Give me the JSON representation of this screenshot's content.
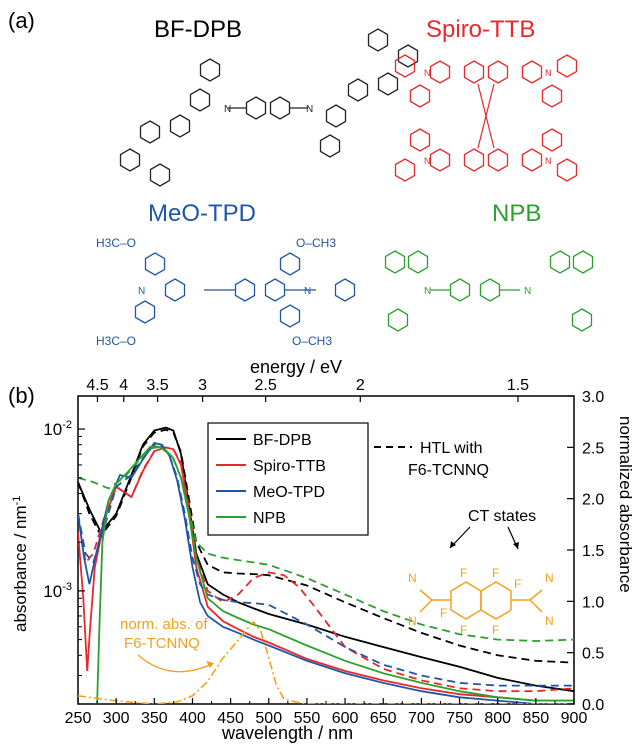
{
  "panel_a": {
    "label": "(a)",
    "molecules": [
      {
        "name": "BF-DPB",
        "color": "#000000"
      },
      {
        "name": "Spiro-TTB",
        "color": "#e8282b"
      },
      {
        "name": "MeO-TPD",
        "color": "#1f57a6"
      },
      {
        "name": "NPB",
        "color": "#2ca02c"
      }
    ],
    "meo_tpd_substituents": [
      "H3C–O",
      "O–CH3",
      "H3C–O",
      "O–CH3"
    ],
    "f6_atoms": {
      "N": "N",
      "F": "F"
    }
  },
  "panel_b": {
    "label": "(b)"
  },
  "chart_data": {
    "type": "line",
    "xlabel": "wavelength / nm",
    "ylabel_left": "absorbance / nm",
    "ylabel_left_exp": "-1",
    "ylabel_right": "normalized absorbance",
    "top_label": "energy / eV",
    "xlim": [
      250,
      900
    ],
    "ylim_left_log": [
      0.0002,
      0.016
    ],
    "ylim_right": [
      0,
      3.0
    ],
    "x_ticks": [
      "250",
      "300",
      "350",
      "400",
      "450",
      "500",
      "550",
      "600",
      "650",
      "700",
      "750",
      "800",
      "850",
      "900"
    ],
    "left_ticks": [
      {
        "value": 0.01,
        "base": "10",
        "exp": "-2"
      },
      {
        "value": 0.001,
        "base": "10",
        "exp": "-3"
      }
    ],
    "right_ticks": [
      "0.0",
      "0.5",
      "1.0",
      "1.5",
      "2.0",
      "2.5",
      "3.0"
    ],
    "top_ticks": [
      "4.5",
      "4",
      "3.5",
      "3",
      "2.5",
      "2",
      "1.5"
    ],
    "legend": {
      "entries": [
        "BF-DPB",
        "Spiro-TTB",
        "MeO-TPD",
        "NPB"
      ],
      "dashed_label_1": "HTL with",
      "dashed_label_2": "F6-TCNNQ"
    },
    "annotations": {
      "ct_states": "CT states",
      "norm_abs_1": "norm. abs. of",
      "norm_abs_2": "F6-TCNNQ"
    },
    "series": [
      {
        "name": "BF-DPB",
        "color": "#000000",
        "style": "solid",
        "x": [
          250,
          265,
          280,
          300,
          320,
          335,
          350,
          365,
          375,
          385,
          395,
          405,
          420,
          440,
          460,
          480,
          500,
          550,
          600,
          650,
          700,
          750,
          800,
          850,
          900
        ],
        "y": [
          0.0047,
          0.0032,
          0.0023,
          0.003,
          0.0052,
          0.008,
          0.0098,
          0.0102,
          0.0098,
          0.007,
          0.0035,
          0.0017,
          0.0011,
          0.00095,
          0.00085,
          0.00078,
          0.00072,
          0.00062,
          0.00052,
          0.00045,
          0.00039,
          0.00034,
          0.00029,
          0.00026,
          0.00024
        ]
      },
      {
        "name": "BF-DPB (HTL with F6-TCNNQ)",
        "color": "#000000",
        "style": "dashed",
        "x": [
          250,
          265,
          280,
          300,
          320,
          335,
          350,
          365,
          375,
          385,
          395,
          405,
          420,
          440,
          460,
          480,
          500,
          550,
          600,
          650,
          700,
          750,
          800,
          850,
          900
        ],
        "y": [
          0.0047,
          0.003,
          0.0022,
          0.0029,
          0.005,
          0.0078,
          0.0095,
          0.0099,
          0.0095,
          0.0072,
          0.0038,
          0.002,
          0.00145,
          0.0013,
          0.00128,
          0.00127,
          0.00125,
          0.00108,
          0.00085,
          0.00068,
          0.00055,
          0.00046,
          0.0004,
          0.00037,
          0.00036
        ]
      },
      {
        "name": "Spiro-TTB",
        "color": "#e8282b",
        "style": "solid",
        "x": [
          250,
          257,
          262,
          266,
          272,
          285,
          300,
          320,
          335,
          350,
          365,
          375,
          385,
          395,
          405,
          420,
          440,
          460,
          480,
          500,
          550,
          600,
          650,
          700,
          750,
          800,
          850,
          900
        ],
        "y": [
          0.0023,
          0.0009,
          0.00032,
          0.0006,
          0.0014,
          0.0028,
          0.0044,
          0.0038,
          0.0055,
          0.0073,
          0.0077,
          0.0075,
          0.006,
          0.0032,
          0.0014,
          0.0008,
          0.00065,
          0.00058,
          0.00052,
          0.00048,
          0.00038,
          0.00032,
          0.00028,
          0.00025,
          0.00023,
          0.00022,
          0.00021,
          0.00021
        ]
      },
      {
        "name": "Spiro-TTB (HTL with F6-TCNNQ)",
        "color": "#e8282b",
        "style": "dashed",
        "x": [
          250,
          260,
          270,
          285,
          300,
          320,
          335,
          350,
          365,
          375,
          385,
          395,
          405,
          420,
          440,
          460,
          480,
          500,
          520,
          540,
          560,
          600,
          650,
          700,
          750,
          800,
          850,
          900
        ],
        "y": [
          0.003,
          0.0015,
          0.0017,
          0.0029,
          0.0044,
          0.0038,
          0.0056,
          0.0073,
          0.0077,
          0.0075,
          0.0062,
          0.0034,
          0.0016,
          0.001,
          0.00085,
          0.00095,
          0.0012,
          0.0013,
          0.00125,
          0.00105,
          0.0008,
          0.00045,
          0.00033,
          0.00028,
          0.00025,
          0.00024,
          0.00024,
          0.00025
        ]
      },
      {
        "name": "MeO-TPD",
        "color": "#1f57a6",
        "style": "solid",
        "x": [
          250,
          258,
          265,
          275,
          290,
          305,
          320,
          335,
          350,
          360,
          370,
          380,
          390,
          400,
          410,
          420,
          440,
          460,
          480,
          500,
          550,
          600,
          650,
          700,
          750,
          800,
          850,
          900
        ],
        "y": [
          0.003,
          0.0016,
          0.0011,
          0.0018,
          0.0036,
          0.0052,
          0.005,
          0.0065,
          0.0082,
          0.008,
          0.0068,
          0.0048,
          0.0028,
          0.0014,
          0.00085,
          0.0007,
          0.0006,
          0.00055,
          0.0005,
          0.00046,
          0.00037,
          0.00031,
          0.00027,
          0.00024,
          0.00022,
          0.00021,
          0.0002,
          0.0002
        ]
      },
      {
        "name": "MeO-TPD (HTL with F6-TCNNQ)",
        "color": "#1f57a6",
        "style": "dashed",
        "x": [
          250,
          260,
          270,
          285,
          300,
          320,
          335,
          350,
          360,
          370,
          380,
          390,
          400,
          410,
          420,
          440,
          460,
          480,
          500,
          550,
          600,
          650,
          700,
          750,
          800,
          850,
          900
        ],
        "y": [
          0.003,
          0.0017,
          0.0015,
          0.0025,
          0.0044,
          0.0052,
          0.0066,
          0.008,
          0.0078,
          0.0068,
          0.005,
          0.003,
          0.0016,
          0.0011,
          0.00095,
          0.00088,
          0.00085,
          0.00084,
          0.00082,
          0.00062,
          0.00045,
          0.00035,
          0.0003,
          0.00027,
          0.00026,
          0.00026,
          0.00026
        ]
      },
      {
        "name": "NPB",
        "color": "#2ca02c",
        "style": "solid",
        "x": [
          275,
          278,
          282,
          290,
          300,
          315,
          330,
          345,
          355,
          365,
          375,
          385,
          395,
          405,
          420,
          440,
          460,
          480,
          500,
          550,
          600,
          650,
          700,
          750,
          800,
          850,
          900
        ],
        "y": [
          0.0002,
          0.0006,
          0.002,
          0.0036,
          0.0046,
          0.0054,
          0.0065,
          0.0078,
          0.0078,
          0.0074,
          0.0066,
          0.005,
          0.003,
          0.0016,
          0.0009,
          0.00075,
          0.00068,
          0.00062,
          0.00058,
          0.00046,
          0.00037,
          0.00031,
          0.00027,
          0.00024,
          0.00022,
          0.00021,
          0.00021
        ]
      },
      {
        "name": "NPB (HTL with F6-TCNNQ)",
        "color": "#2ca02c",
        "style": "dashed",
        "x": [
          250,
          270,
          290,
          310,
          330,
          345,
          355,
          365,
          375,
          385,
          395,
          405,
          420,
          440,
          460,
          480,
          500,
          550,
          600,
          650,
          700,
          750,
          800,
          850,
          900
        ],
        "y": [
          0.005,
          0.0047,
          0.0043,
          0.005,
          0.0064,
          0.0076,
          0.0077,
          0.0073,
          0.0065,
          0.005,
          0.0032,
          0.002,
          0.0017,
          0.0016,
          0.00155,
          0.0015,
          0.00145,
          0.0012,
          0.00095,
          0.00075,
          0.00062,
          0.00054,
          0.0005,
          0.00049,
          0.0005
        ]
      },
      {
        "name": "norm. abs. of F6-TCNNQ",
        "color": "#f5a01a",
        "style": "dashdot",
        "axis": "right",
        "x": [
          250,
          300,
          350,
          380,
          400,
          420,
          440,
          460,
          470,
          480,
          490,
          500,
          510,
          520,
          535,
          550,
          600,
          650,
          700,
          800,
          900
        ],
        "y": [
          0.08,
          0.03,
          0.0,
          0.02,
          0.08,
          0.22,
          0.45,
          0.62,
          0.72,
          0.8,
          0.7,
          0.45,
          0.18,
          0.05,
          0.02,
          0.0,
          0.0,
          0.0,
          0.0,
          0.0,
          0.0
        ]
      }
    ]
  }
}
